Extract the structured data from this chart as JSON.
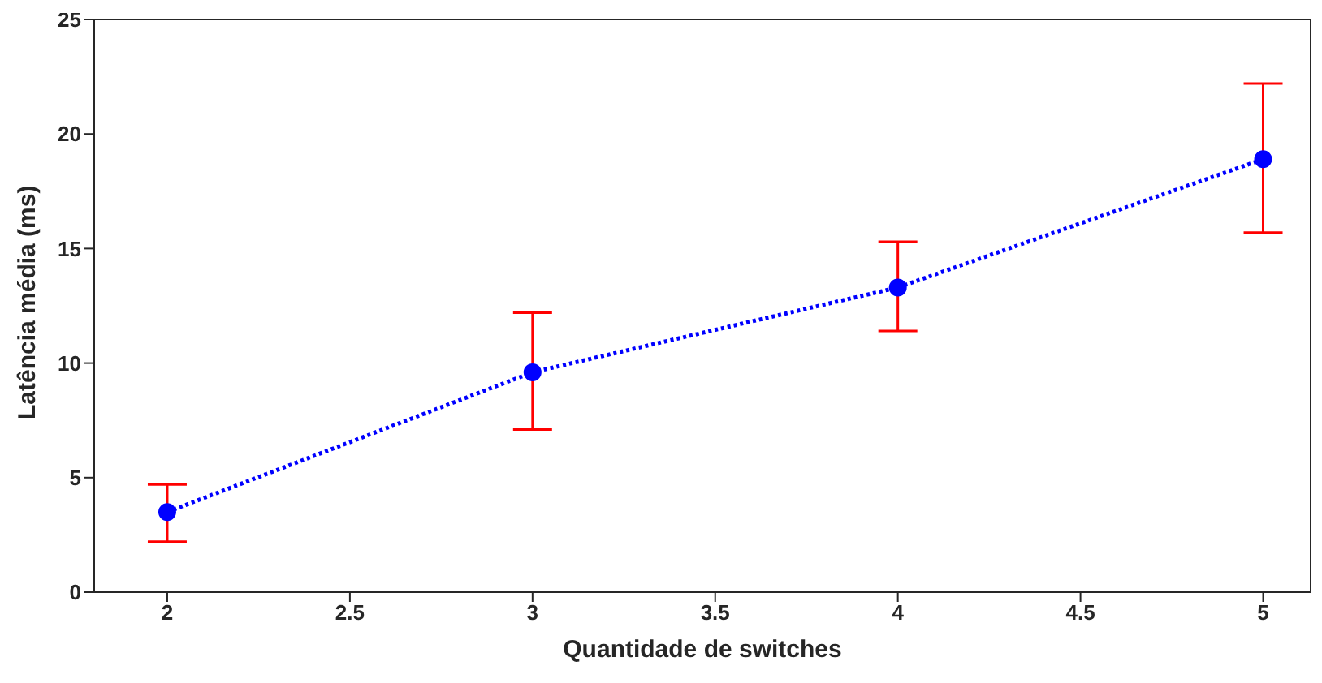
{
  "chart_data": {
    "type": "line",
    "xlabel": "Quantidade de switches",
    "ylabel": "Latência média (ms)",
    "x": [
      2,
      3,
      4,
      5
    ],
    "series": [
      {
        "color": "#0000ff",
        "values": [
          3.5,
          9.6,
          13.3,
          18.9
        ],
        "errors": [
          [
            2.2,
            4.7
          ],
          [
            7.1,
            12.2
          ],
          [
            11.4,
            15.3
          ],
          [
            15.7,
            22.2
          ]
        ]
      }
    ],
    "xlim": [
      1.8,
      5.13
    ],
    "ylim": [
      0,
      25
    ],
    "xticks": [
      2,
      2.5,
      3,
      3.5,
      4,
      4.5,
      5
    ],
    "yticks": [
      0,
      5,
      10,
      15,
      20,
      25
    ],
    "grid": false,
    "legend": false,
    "marker": "circle",
    "line_style": "dotted"
  }
}
